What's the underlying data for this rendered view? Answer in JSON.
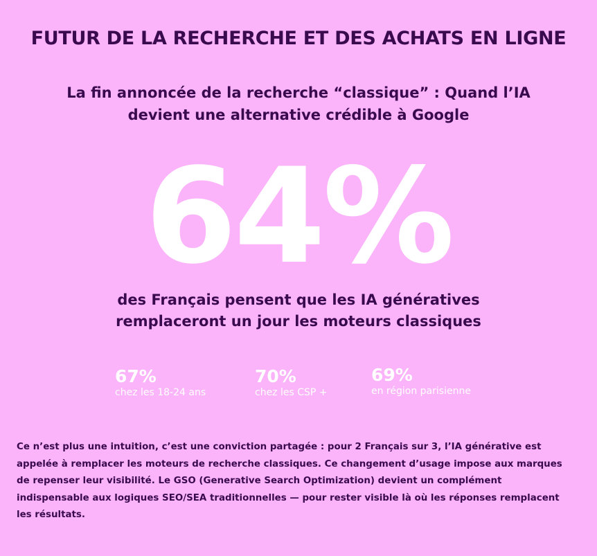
{
  "header": {
    "title": "FUTUR DE LA RECHERCHE ET DES ACHATS EN LIGNE"
  },
  "subtitle": {
    "lines": [
      "La fin annoncée de la recherche “classique” : Quand l’IA",
      "devient une alternative crédible à Google"
    ]
  },
  "main_stat": {
    "value": "64%",
    "description_lines": [
      "des Français pensent que les IA génératives",
      "remplaceront un jour les moteurs classiques"
    ]
  },
  "stats": [
    {
      "value": "67%",
      "label": "chez les 18-24 ans"
    },
    {
      "value": "70%",
      "label": "chez les CSP +"
    },
    {
      "value": "69%",
      "label": "en région parisienne"
    }
  ],
  "body": {
    "lines": [
      "Ce n’est plus une intuition, c’est une conviction partagée : pour 2 Français sur 3, l’IA générative est",
      "appelée à remplacer les moteurs de recherche classiques. Ce changement d’usage impose aux marques",
      "de repenser leur visibilité. Le GSO (Generative Search Optimization) devient un complément",
      "indispensable aux logiques SEO/SEA traditionnelles — pour rester visible là où les réponses remplacent",
      "les résultats."
    ]
  },
  "colors": {
    "background": "#fbb3fa",
    "text_dark": "#3a0a4e",
    "text_light": "#ffffff"
  }
}
